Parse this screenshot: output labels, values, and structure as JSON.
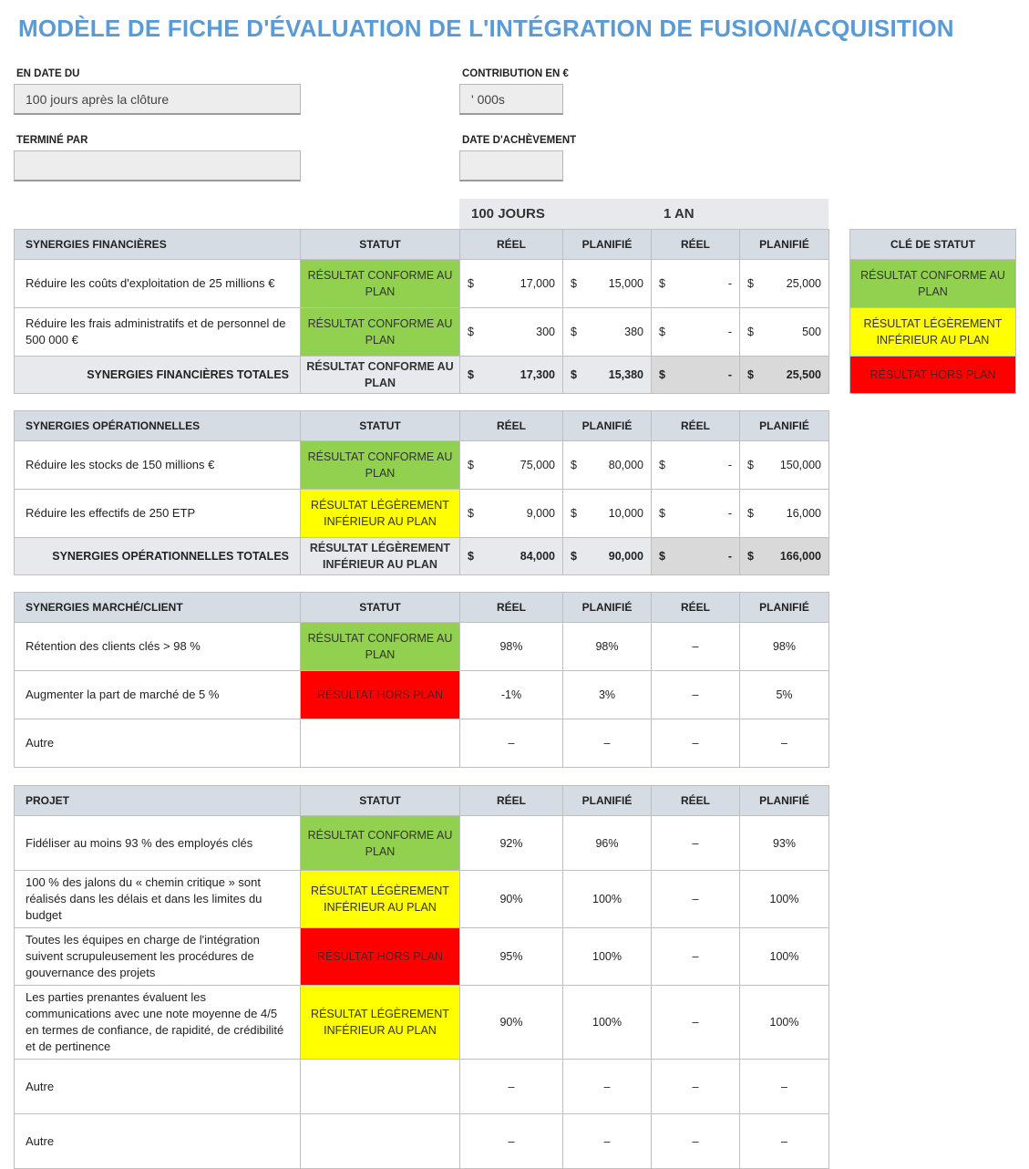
{
  "title": "MODÈLE DE FICHE D'ÉVALUATION DE L'INTÉGRATION DE FUSION/ACQUISITION",
  "fields": {
    "as_of_label": "EN DATE DU",
    "as_of_value": "100 jours après la clôture",
    "contribution_label": "CONTRIBUTION EN €",
    "contribution_value": "' 000s",
    "completed_by_label": "TERMINÉ PAR",
    "completed_by_value": "",
    "completion_date_label": "DATE D'ACHÈVEMENT",
    "completion_date_value": ""
  },
  "periods": {
    "p1": "100 JOURS",
    "p2": "1 AN"
  },
  "columns": {
    "status": "STATUT",
    "actual": "RÉEL",
    "planned": "PLANIFIÉ"
  },
  "currency": "$",
  "colors": {
    "green": "#92d050",
    "yellow": "#ffff00",
    "red": "#ff0000",
    "header": "#d6dce4"
  },
  "status_key": {
    "header": "CLÉ DE STATUT",
    "green": "RÉSULTAT CONFORME AU PLAN",
    "yellow": "RÉSULTAT LÉGÈREMENT INFÉRIEUR AU PLAN",
    "red": "RÉSULTAT HORS PLAN"
  },
  "financial": {
    "header": "SYNERGIES FINANCIÈRES",
    "rows": [
      {
        "desc": "Réduire les coûts d'exploitation de 25 millions €",
        "status": "RÉSULTAT CONFORME AU PLAN",
        "a1": "17,000",
        "p1": "15,000",
        "a2": "-",
        "p2": "25,000"
      },
      {
        "desc": "Réduire les frais administratifs et de personnel de 500 000 €",
        "status": "RÉSULTAT CONFORME AU PLAN",
        "a1": "300",
        "p1": "380",
        "a2": "-",
        "p2": "500"
      }
    ],
    "total": {
      "label": "SYNERGIES FINANCIÈRES TOTALES",
      "status": "RÉSULTAT CONFORME AU PLAN",
      "a1": "17,300",
      "p1": "15,380",
      "a2": "-",
      "p2": "25,500"
    }
  },
  "operational": {
    "header": "SYNERGIES OPÉRATIONNELLES",
    "rows": [
      {
        "desc": "Réduire les stocks de 150 millions €",
        "status": "RÉSULTAT CONFORME AU PLAN",
        "a1": "75,000",
        "p1": "80,000",
        "a2": "-",
        "p2": "150,000"
      },
      {
        "desc": "Réduire les effectifs de 250 ETP",
        "status": "RÉSULTAT LÉGÈREMENT INFÉRIEUR AU PLAN",
        "a1": "9,000",
        "p1": "10,000",
        "a2": "-",
        "p2": "16,000"
      }
    ],
    "total": {
      "label": "SYNERGIES OPÉRATIONNELLES TOTALES",
      "status": "RÉSULTAT LÉGÈREMENT INFÉRIEUR AU PLAN",
      "a1": "84,000",
      "p1": "90,000",
      "a2": "-",
      "p2": "166,000"
    }
  },
  "market": {
    "header": "SYNERGIES MARCHÉ/CLIENT",
    "rows": [
      {
        "desc": "Rétention des clients clés > 98 %",
        "status": "RÉSULTAT CONFORME AU PLAN",
        "a1": "98%",
        "p1": "98%",
        "a2": "–",
        "p2": "98%"
      },
      {
        "desc": "Augmenter la part de marché de 5 %",
        "status": "RÉSULTAT HORS PLAN",
        "a1": "-1%",
        "p1": "3%",
        "a2": "–",
        "p2": "5%"
      },
      {
        "desc": "Autre",
        "status": "",
        "a1": "–",
        "p1": "–",
        "a2": "–",
        "p2": "–"
      }
    ]
  },
  "project": {
    "header": "PROJET",
    "rows": [
      {
        "desc": "Fidéliser au moins 93 % des employés clés",
        "status": "RÉSULTAT CONFORME AU PLAN",
        "a1": "92%",
        "p1": "96%",
        "a2": "–",
        "p2": "93%"
      },
      {
        "desc": "100 % des jalons du « chemin critique » sont réalisés dans les délais et dans les limites du budget",
        "status": "RÉSULTAT LÉGÈREMENT INFÉRIEUR AU PLAN",
        "a1": "90%",
        "p1": "100%",
        "a2": "–",
        "p2": "100%"
      },
      {
        "desc": "Toutes les équipes en charge de l'intégration suivent scrupuleusement les procédures de gouvernance des projets",
        "status": "RÉSULTAT HORS PLAN",
        "a1": "95%",
        "p1": "100%",
        "a2": "–",
        "p2": "100%"
      },
      {
        "desc": "Les parties prenantes évaluent les communications avec une note moyenne de 4/5 en termes de confiance, de rapidité, de crédibilité et de pertinence",
        "status": "RÉSULTAT LÉGÈREMENT INFÉRIEUR AU PLAN",
        "a1": "90%",
        "p1": "100%",
        "a2": "–",
        "p2": "100%"
      },
      {
        "desc": "Autre",
        "status": "",
        "a1": "–",
        "p1": "–",
        "a2": "–",
        "p2": "–"
      },
      {
        "desc": "Autre",
        "status": "",
        "a1": "–",
        "p1": "–",
        "a2": "–",
        "p2": "–"
      }
    ]
  }
}
